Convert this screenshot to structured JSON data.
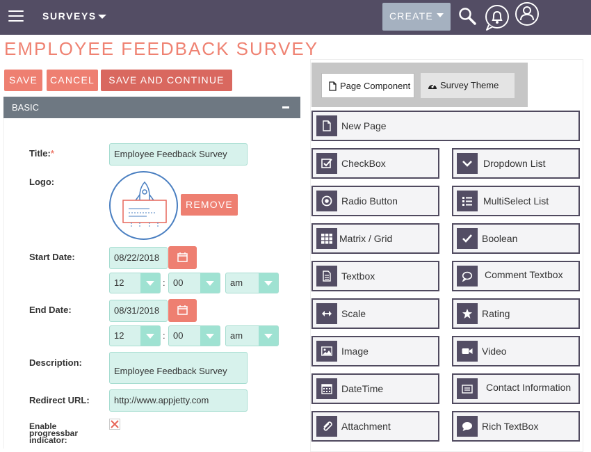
{
  "topbar": {
    "module": "SURVEYS",
    "create_label": "CREATE"
  },
  "page": {
    "title": "EMPLOYEE FEEDBACK SURVEY"
  },
  "actions": {
    "save": "SAVE",
    "cancel": "CANCEL",
    "save_continue": "SAVE AND CONTINUE"
  },
  "panel": {
    "header": "BASIC"
  },
  "form": {
    "title_label": "Title:",
    "title_required": "*",
    "title_value": "Employee Feedback Survey",
    "logo_label": "Logo:",
    "remove_label": "REMOVE",
    "start_date_label": "Start Date:",
    "start_date_value": "08/22/2018",
    "start_hour": "12",
    "start_minute": "00",
    "start_ampm": "am",
    "end_date_label": "End Date:",
    "end_date_value": "08/31/2018",
    "end_hour": "12",
    "end_minute": "00",
    "end_ampm": "am",
    "description_label": "Description:",
    "description_value": "Employee Feedback Survey",
    "redirect_label": "Redirect URL:",
    "redirect_value": "http://www.appjetty.com",
    "progress_label_1": "Enable",
    "progress_label_2": "progressbar",
    "progress_label_3": "indicator:",
    "time_separator": ":"
  },
  "palette": {
    "tabs": {
      "page_component": "Page Component",
      "survey_theme": "Survey Theme"
    },
    "new_page": "New Page",
    "items": {
      "checkbox": "CheckBox",
      "dropdown": "Dropdown List",
      "radio": "Radio Button",
      "multiselect": "MultiSelect List",
      "matrix": "Matrix / Grid",
      "boolean": "Boolean",
      "textbox": "Textbox",
      "comment": "Comment Textbox",
      "scale": "Scale",
      "rating": "Rating",
      "image": "Image",
      "video": "Video",
      "datetime": "DateTime",
      "contact": "Contact Information",
      "attachment": "Attachment",
      "richtext": "Rich TextBox"
    }
  },
  "colors": {
    "topbar": "#534d64",
    "accent": "#ee7f71",
    "field_bg": "#d7f2ec",
    "panel_header": "#6e7882"
  }
}
